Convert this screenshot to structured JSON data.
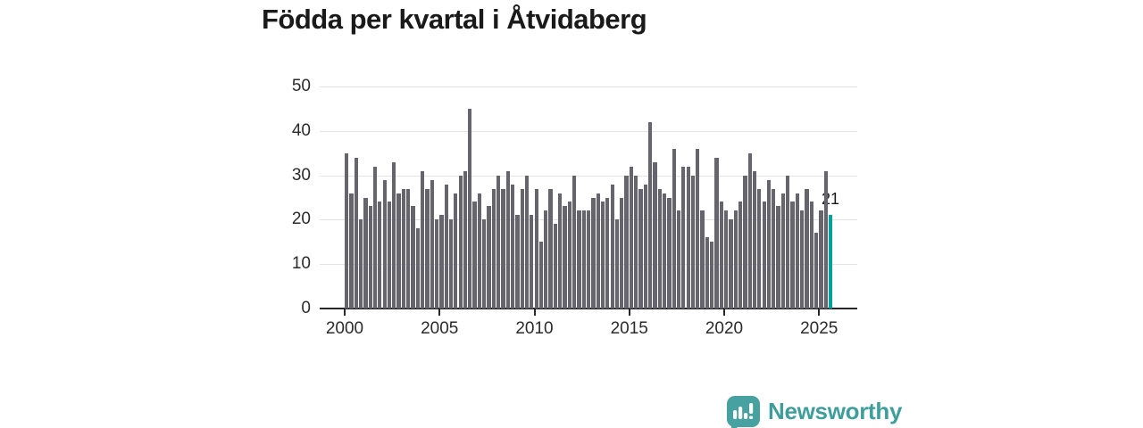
{
  "title": "Födda per kvartal i Åtvidaberg",
  "chart_data": {
    "type": "bar",
    "title": "Födda per kvartal i Åtvidaberg",
    "x_unit": "quarter",
    "start_year": 2000,
    "end_quarter": "2025-Q3",
    "values_by_year": {
      "2000": [
        35,
        26,
        34,
        20
      ],
      "2001": [
        25,
        23,
        32,
        24
      ],
      "2002": [
        29,
        24,
        33,
        26
      ],
      "2003": [
        27,
        27,
        23,
        18
      ],
      "2004": [
        31,
        27,
        29,
        20
      ],
      "2005": [
        21,
        28,
        20,
        26
      ],
      "2006": [
        30,
        31,
        45,
        24
      ],
      "2007": [
        26,
        20,
        23,
        27
      ],
      "2008": [
        30,
        27,
        31,
        28
      ],
      "2009": [
        21,
        27,
        30,
        21
      ],
      "2010": [
        27,
        15,
        22,
        27
      ],
      "2011": [
        19,
        26,
        23,
        24
      ],
      "2012": [
        30,
        22,
        22,
        22
      ],
      "2013": [
        25,
        26,
        24,
        25
      ],
      "2014": [
        28,
        20,
        25,
        30
      ],
      "2015": [
        32,
        30,
        27,
        28
      ],
      "2016": [
        42,
        33,
        27,
        26
      ],
      "2017": [
        25,
        36,
        22,
        32
      ],
      "2018": [
        32,
        30,
        36,
        22
      ],
      "2019": [
        16,
        15,
        34,
        24
      ],
      "2020": [
        22,
        20,
        22,
        24
      ],
      "2021": [
        30,
        35,
        31,
        27
      ],
      "2022": [
        24,
        29,
        27,
        23
      ],
      "2023": [
        26,
        30,
        24,
        26
      ],
      "2024": [
        22,
        27,
        24,
        17
      ],
      "2025": [
        22,
        31,
        21
      ]
    },
    "ylim": [
      0,
      50
    ],
    "yticks": [
      0,
      10,
      20,
      30,
      40,
      50
    ],
    "xticks": [
      "2000",
      "2005",
      "2010",
      "2015",
      "2020",
      "2025"
    ],
    "grid": true,
    "legend": false,
    "annotation_label": "21",
    "highlight_last_bar": true,
    "colors": {
      "bar": "#66656d",
      "highlight": "#00a29b",
      "gridline": "#e3e3e3",
      "axis": "#26262b",
      "text": "#1a1a1a"
    }
  },
  "branding": {
    "name": "Newsworthy",
    "color": "#3f9e9b"
  }
}
